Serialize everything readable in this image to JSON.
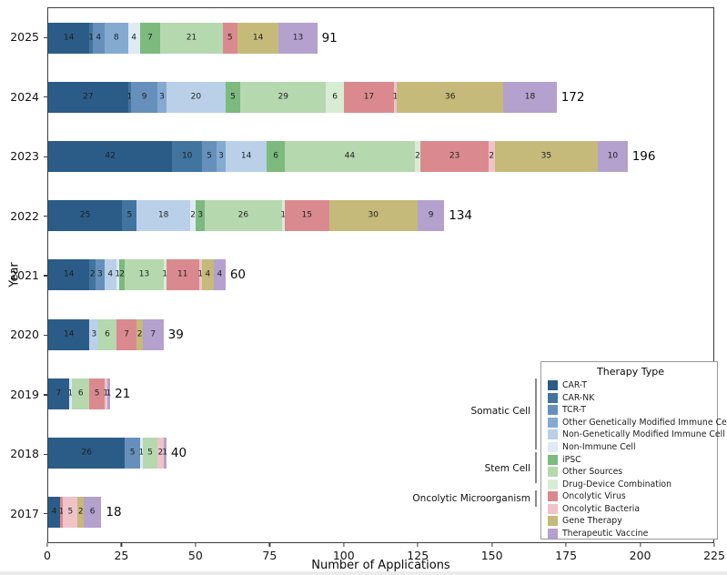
{
  "axes": {
    "xlabel": "Number of Applications",
    "ylabel": "Year"
  },
  "legend": {
    "title": "Therapy Type",
    "entries": [
      {
        "label": "CAR-T",
        "color": "#2b5c88"
      },
      {
        "label": "CAR-NK",
        "color": "#41749f"
      },
      {
        "label": "TCR-T",
        "color": "#6690bb"
      },
      {
        "label": "Other Genetically Modified Immune Cell",
        "color": "#85aad2"
      },
      {
        "label": "Non-Genetically Modified Immune Cell",
        "color": "#b9d0e8"
      },
      {
        "label": "Non-Immune Cell",
        "color": "#dfeaf5"
      },
      {
        "label": "iPSC",
        "color": "#7cba7e"
      },
      {
        "label": "Other Sources",
        "color": "#b5d8af"
      },
      {
        "label": "Drug-Device Combination",
        "color": "#d8ecd3"
      },
      {
        "label": "Oncolytic Virus",
        "color": "#da8a8f"
      },
      {
        "label": "Oncolytic Bacteria",
        "color": "#f0c3ca"
      },
      {
        "label": "Gene Therapy",
        "color": "#c5ba7a"
      },
      {
        "label": "Therapeutic Vaccine",
        "color": "#b4a1ce"
      }
    ],
    "groups": [
      {
        "label": "Somatic Cell"
      },
      {
        "label": "Stem Cell"
      },
      {
        "label": "Oncolytic Microorganism"
      }
    ]
  },
  "chart_data": {
    "type": "bar",
    "orientation": "horizontal",
    "stacked": true,
    "xlabel": "Number of Applications",
    "ylabel": "Year",
    "xlim": [
      0,
      225
    ],
    "x_ticks": [
      0,
      25,
      50,
      75,
      100,
      125,
      150,
      175,
      200,
      225
    ],
    "bars": [
      {
        "year": "2025",
        "total": 91,
        "segments": [
          {
            "therapy": "CAR-T",
            "value": 14
          },
          {
            "therapy": "CAR-NK",
            "value": 1
          },
          {
            "therapy": "TCR-T",
            "value": 4
          },
          {
            "therapy": "Other Genetically Modified Immune Cell",
            "value": 8
          },
          {
            "therapy": "Non-Immune Cell",
            "value": 4
          },
          {
            "therapy": "iPSC",
            "value": 7
          },
          {
            "therapy": "Other Sources",
            "value": 21
          },
          {
            "therapy": "Oncolytic Virus",
            "value": 5
          },
          {
            "therapy": "Gene Therapy",
            "value": 14
          },
          {
            "therapy": "Therapeutic Vaccine",
            "value": 13
          }
        ]
      },
      {
        "year": "2024",
        "total": 172,
        "segments": [
          {
            "therapy": "CAR-T",
            "value": 27
          },
          {
            "therapy": "CAR-NK",
            "value": 1
          },
          {
            "therapy": "TCR-T",
            "value": 9
          },
          {
            "therapy": "Other Genetically Modified Immune Cell",
            "value": 3
          },
          {
            "therapy": "Non-Genetically Modified Immune Cell",
            "value": 20
          },
          {
            "therapy": "iPSC",
            "value": 5
          },
          {
            "therapy": "Other Sources",
            "value": 29
          },
          {
            "therapy": "Drug-Device Combination",
            "value": 6
          },
          {
            "therapy": "Oncolytic Virus",
            "value": 17
          },
          {
            "therapy": "Oncolytic Bacteria",
            "value": 1
          },
          {
            "therapy": "Gene Therapy",
            "value": 36
          },
          {
            "therapy": "Therapeutic Vaccine",
            "value": 18
          }
        ]
      },
      {
        "year": "2023",
        "total": 196,
        "segments": [
          {
            "therapy": "CAR-T",
            "value": 42
          },
          {
            "therapy": "CAR-NK",
            "value": 10
          },
          {
            "therapy": "TCR-T",
            "value": 5
          },
          {
            "therapy": "Other Genetically Modified Immune Cell",
            "value": 3
          },
          {
            "therapy": "Non-Genetically Modified Immune Cell",
            "value": 14
          },
          {
            "therapy": "iPSC",
            "value": 6
          },
          {
            "therapy": "Other Sources",
            "value": 44
          },
          {
            "therapy": "Drug-Device Combination",
            "value": 2
          },
          {
            "therapy": "Oncolytic Virus",
            "value": 23
          },
          {
            "therapy": "Oncolytic Bacteria",
            "value": 2
          },
          {
            "therapy": "Gene Therapy",
            "value": 35
          },
          {
            "therapy": "Therapeutic Vaccine",
            "value": 10
          }
        ]
      },
      {
        "year": "2022",
        "total": 134,
        "segments": [
          {
            "therapy": "CAR-T",
            "value": 25
          },
          {
            "therapy": "CAR-NK",
            "value": 5
          },
          {
            "therapy": "Non-Genetically Modified Immune Cell",
            "value": 18
          },
          {
            "therapy": "Non-Immune Cell",
            "value": 2
          },
          {
            "therapy": "iPSC",
            "value": 3
          },
          {
            "therapy": "Other Sources",
            "value": 26
          },
          {
            "therapy": "Drug-Device Combination",
            "value": 1
          },
          {
            "therapy": "Oncolytic Virus",
            "value": 15
          },
          {
            "therapy": "Gene Therapy",
            "value": 30
          },
          {
            "therapy": "Therapeutic Vaccine",
            "value": 9
          }
        ]
      },
      {
        "year": "2021",
        "total": 60,
        "segments": [
          {
            "therapy": "CAR-T",
            "value": 14
          },
          {
            "therapy": "CAR-NK",
            "value": 2
          },
          {
            "therapy": "TCR-T",
            "value": 3
          },
          {
            "therapy": "Non-Genetically Modified Immune Cell",
            "value": 4
          },
          {
            "therapy": "Non-Immune Cell",
            "value": 1
          },
          {
            "therapy": "iPSC",
            "value": 2
          },
          {
            "therapy": "Other Sources",
            "value": 13
          },
          {
            "therapy": "Drug-Device Combination",
            "value": 1
          },
          {
            "therapy": "Oncolytic Virus",
            "value": 11
          },
          {
            "therapy": "Oncolytic Bacteria",
            "value": 1
          },
          {
            "therapy": "Gene Therapy",
            "value": 4
          },
          {
            "therapy": "Therapeutic Vaccine",
            "value": 4
          }
        ]
      },
      {
        "year": "2020",
        "total": 39,
        "segments": [
          {
            "therapy": "CAR-T",
            "value": 14
          },
          {
            "therapy": "Non-Genetically Modified Immune Cell",
            "value": 3
          },
          {
            "therapy": "Other Sources",
            "value": 6
          },
          {
            "therapy": "Oncolytic Virus",
            "value": 7
          },
          {
            "therapy": "Gene Therapy",
            "value": 2
          },
          {
            "therapy": "Therapeutic Vaccine",
            "value": 7
          }
        ]
      },
      {
        "year": "2019",
        "total": 21,
        "segments": [
          {
            "therapy": "CAR-T",
            "value": 7
          },
          {
            "therapy": "Non-Immune Cell",
            "value": 1
          },
          {
            "therapy": "Other Sources",
            "value": 6
          },
          {
            "therapy": "Oncolytic Virus",
            "value": 5
          },
          {
            "therapy": "Oncolytic Bacteria",
            "value": 1
          },
          {
            "therapy": "Therapeutic Vaccine",
            "value": 1
          }
        ]
      },
      {
        "year": "2018",
        "total": 40,
        "segments": [
          {
            "therapy": "CAR-T",
            "value": 26
          },
          {
            "therapy": "TCR-T",
            "value": 5
          },
          {
            "therapy": "Non-Immune Cell",
            "value": 1
          },
          {
            "therapy": "Other Sources",
            "value": 5
          },
          {
            "therapy": "Oncolytic Bacteria",
            "value": 2
          },
          {
            "therapy": "Therapeutic Vaccine",
            "value": 1
          }
        ]
      },
      {
        "year": "2017",
        "total": 18,
        "segments": [
          {
            "therapy": "CAR-T",
            "value": 4
          },
          {
            "therapy": "Oncolytic Virus",
            "value": 1
          },
          {
            "therapy": "Oncolytic Bacteria",
            "value": 5
          },
          {
            "therapy": "Gene Therapy",
            "value": 2
          },
          {
            "therapy": "Therapeutic Vaccine",
            "value": 6
          }
        ]
      }
    ]
  }
}
